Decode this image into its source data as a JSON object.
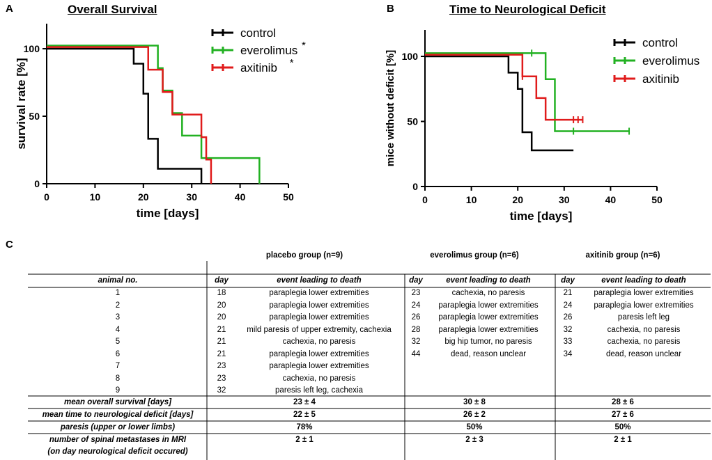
{
  "panels": {
    "a": "A",
    "b": "B",
    "c": "C"
  },
  "chart_data": [
    {
      "type": "line",
      "title": "Overall Survival",
      "xlabel": "time [days]",
      "ylabel": "survival rate [%]",
      "xlim": [
        0,
        50
      ],
      "ylim": [
        0,
        100
      ],
      "xticks": [
        "0",
        "10",
        "20",
        "30",
        "40",
        "50"
      ],
      "yticks": [
        "0",
        "50",
        "100"
      ],
      "legend_position": "top-right",
      "series": [
        {
          "name": "control",
          "asterisk": "",
          "color": "#000000",
          "steps": [
            [
              0,
              100
            ],
            [
              18,
              88.9
            ],
            [
              20,
              77.8
            ],
            [
              20,
              66.7
            ],
            [
              21,
              55.6
            ],
            [
              21,
              44.4
            ],
            [
              21,
              33.3
            ],
            [
              23,
              22.2
            ],
            [
              23,
              11.1
            ],
            [
              32,
              0
            ]
          ],
          "end": 32,
          "offset": 0,
          "censor": []
        },
        {
          "name": "everolimus",
          "asterisk": "*",
          "color": "#22b122",
          "steps": [
            [
              0,
              100
            ],
            [
              23,
              83.3
            ],
            [
              24,
              66.7
            ],
            [
              26,
              50
            ],
            [
              28,
              33.3
            ],
            [
              32,
              16.7
            ],
            [
              44,
              0
            ]
          ],
          "end": 44,
          "offset": 2.3,
          "censor": []
        },
        {
          "name": "axitinib",
          "asterisk": "*",
          "color": "#e01b1b",
          "steps": [
            [
              0,
              100
            ],
            [
              21,
              83.3
            ],
            [
              24,
              66.7
            ],
            [
              26,
              50
            ],
            [
              32,
              33.3
            ],
            [
              33,
              16.7
            ],
            [
              34,
              0
            ]
          ],
          "end": 34,
          "offset": 1.2,
          "censor": []
        }
      ]
    },
    {
      "type": "line",
      "title": "Time to Neurological Deficit",
      "xlabel": "time [days]",
      "ylabel": "mice without deficit [%]",
      "xlim": [
        0,
        50
      ],
      "ylim": [
        0,
        100
      ],
      "xticks": [
        "0",
        "10",
        "20",
        "30",
        "40",
        "50"
      ],
      "yticks": [
        "0",
        "50",
        "100"
      ],
      "legend_position": "top-right",
      "series": [
        {
          "name": "control",
          "asterisk": "",
          "color": "#000000",
          "steps": [
            [
              0,
              100
            ],
            [
              18,
              87.5
            ],
            [
              20,
              75
            ],
            [
              21,
              62.5
            ],
            [
              21,
              50
            ],
            [
              21,
              41.7
            ],
            [
              23,
              27.8
            ]
          ],
          "end": 32,
          "offset": 0,
          "censor": []
        },
        {
          "name": "everolimus",
          "asterisk": "",
          "color": "#22b122",
          "steps": [
            [
              0,
              100
            ],
            [
              26,
              80
            ],
            [
              28,
              60
            ],
            [
              28,
              40
            ]
          ],
          "end": 44,
          "offset": 2.5,
          "censor": [
            23,
            32,
            44
          ]
        },
        {
          "name": "axitinib",
          "asterisk": "",
          "color": "#e01b1b",
          "steps": [
            [
              0,
              100
            ],
            [
              21,
              83.3
            ],
            [
              24,
              66.7
            ],
            [
              26,
              50
            ]
          ],
          "end": 34,
          "offset": 1.3,
          "censor": [
            21,
            32,
            33,
            34
          ]
        }
      ]
    }
  ],
  "table": {
    "groups": [
      "placebo group (n=9)",
      "everolimus group (n=6)",
      "axitinib group (n=6)"
    ],
    "col_animal": "animal no.",
    "col_day": "day",
    "col_event": "event leading to death",
    "placebo": [
      {
        "no": "1",
        "day": "18",
        "event": "paraplegia lower extremities"
      },
      {
        "no": "2",
        "day": "20",
        "event": "paraplegia lower extremities"
      },
      {
        "no": "3",
        "day": "20",
        "event": "paraplegia lower extremities"
      },
      {
        "no": "4",
        "day": "21",
        "event": "mild paresis of upper extremity, cachexia"
      },
      {
        "no": "5",
        "day": "21",
        "event": "cachexia, no paresis"
      },
      {
        "no": "6",
        "day": "21",
        "event": "paraplegia lower extremities"
      },
      {
        "no": "7",
        "day": "23",
        "event": "paraplegia lower extremities"
      },
      {
        "no": "8",
        "day": "23",
        "event": "cachexia, no paresis"
      },
      {
        "no": "9",
        "day": "32",
        "event": "paresis left leg, cachexia"
      }
    ],
    "everolimus": [
      {
        "day": "23",
        "event": "cachexia, no paresis"
      },
      {
        "day": "24",
        "event": "paraplegia lower extremities"
      },
      {
        "day": "26",
        "event": "paraplegia lower extremities"
      },
      {
        "day": "28",
        "event": "paraplegia lower extremities"
      },
      {
        "day": "32",
        "event": "big hip tumor, no paresis"
      },
      {
        "day": "44",
        "event": "dead, reason unclear"
      }
    ],
    "axitinib": [
      {
        "day": "21",
        "event": "paraplegia lower extremities"
      },
      {
        "day": "24",
        "event": "paraplegia lower extremities"
      },
      {
        "day": "26",
        "event": "paresis left leg"
      },
      {
        "day": "32",
        "event": "cachexia, no paresis"
      },
      {
        "day": "33",
        "event": "cachexia, no paresis"
      },
      {
        "day": "34",
        "event": "dead, reason unclear"
      }
    ],
    "summary": [
      {
        "label": "mean overall survival [days]",
        "values": [
          "23 ± 4",
          "30 ± 8",
          "28 ± 6"
        ]
      },
      {
        "label": "mean time to neurological deficit [days]",
        "values": [
          "22 ± 5",
          "26 ± 2",
          "27 ± 6"
        ]
      },
      {
        "label": "paresis (upper or lower limbs)",
        "values": [
          "78%",
          "50%",
          "50%"
        ]
      },
      {
        "label": "number of spinal metastases in MRI",
        "label2": "(on day neurological deficit occured)",
        "values": [
          "2 ± 1",
          "2 ± 3",
          "2 ± 1"
        ]
      }
    ]
  }
}
